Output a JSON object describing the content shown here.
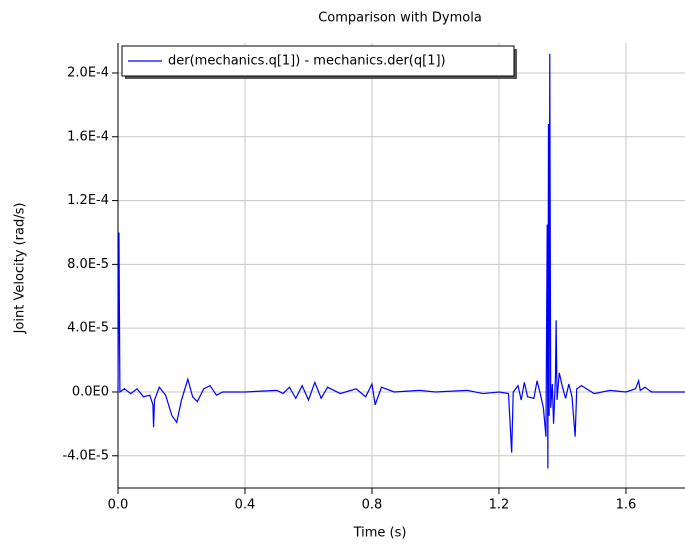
{
  "chart_data": {
    "type": "line",
    "title": "Comparison with Dymola",
    "xlabel": "Time (s)",
    "ylabel": "Joint Velocity  (rad/s)",
    "x": [
      0,
      0.003,
      0.006,
      0.02,
      0.04,
      0.06,
      0.08,
      0.1,
      0.11,
      0.112,
      0.115,
      0.13,
      0.15,
      0.17,
      0.185,
      0.2,
      0.22,
      0.235,
      0.25,
      0.27,
      0.29,
      0.31,
      0.33,
      0.4,
      0.5,
      0.52,
      0.54,
      0.56,
      0.58,
      0.6,
      0.62,
      0.64,
      0.66,
      0.7,
      0.75,
      0.78,
      0.8,
      0.81,
      0.83,
      0.87,
      0.95,
      1.0,
      1.1,
      1.15,
      1.2,
      1.23,
      1.24,
      1.245,
      1.26,
      1.27,
      1.28,
      1.29,
      1.31,
      1.32,
      1.33,
      1.34,
      1.348,
      1.352,
      1.354,
      1.356,
      1.358,
      1.36,
      1.363,
      1.368,
      1.372,
      1.378,
      1.38,
      1.383,
      1.39,
      1.4,
      1.41,
      1.42,
      1.43,
      1.44,
      1.445,
      1.46,
      1.5,
      1.55,
      1.6,
      1.63,
      1.64,
      1.645,
      1.66,
      1.68,
      1.786
    ],
    "series": [
      {
        "name": "der(mechanics.q[1]) - mechanics.der(q[1])",
        "color": "#0000ff",
        "values": [
          0,
          0.0001,
          0,
          2e-06,
          -1e-06,
          2e-06,
          -3e-06,
          -2e-06,
          -8e-06,
          -2.2e-05,
          -5e-06,
          3e-06,
          -2e-06,
          -1.5e-05,
          -1.9e-05,
          -5e-06,
          8e-06,
          -3e-06,
          -6e-06,
          2e-06,
          4e-06,
          -2e-06,
          0,
          0,
          1e-06,
          -1e-06,
          3e-06,
          -4e-06,
          4e-06,
          -5e-06,
          6e-06,
          -4e-06,
          3e-06,
          -1e-06,
          2e-06,
          -3e-06,
          5e-06,
          -8e-06,
          3e-06,
          0,
          1e-06,
          0,
          1e-06,
          -1e-06,
          0,
          -1e-06,
          -3.8e-05,
          0,
          4e-06,
          -5e-06,
          6e-06,
          -3e-06,
          -4e-06,
          7e-06,
          -1e-06,
          -1e-05,
          -2.8e-05,
          0.000105,
          -4.8e-05,
          0.000168,
          -1.5e-05,
          0.000212,
          -1e-05,
          5e-06,
          -2e-05,
          1e-05,
          4.5e-05,
          -5e-06,
          1.2e-05,
          3e-06,
          -4e-06,
          5e-06,
          -3e-06,
          -2.8e-05,
          2e-06,
          4e-06,
          -1e-06,
          1e-06,
          0,
          2e-06,
          7e-06,
          1e-06,
          3e-06,
          0,
          0
        ]
      }
    ],
    "xlim": [
      0,
      1.786
    ],
    "ylim": [
      -6.02e-05,
      0.0002188
    ],
    "xticks": [
      {
        "value": 0,
        "label": "0.0"
      },
      0.4,
      0.8,
      1.2,
      1.6
    ],
    "yticks": [
      {
        "value": -4e-05,
        "label": "-4.0E-5"
      },
      {
        "value": 0,
        "label": "0.0E0"
      },
      {
        "value": 4e-05,
        "label": "4.0E-5"
      },
      {
        "value": 8e-05,
        "label": "8.0E-5"
      },
      {
        "value": 0.00012,
        "label": "1.2E-4"
      },
      {
        "value": 0.00016,
        "label": "1.6E-4"
      },
      {
        "value": 0.0002,
        "label": "2.0E-4"
      }
    ],
    "grid": true,
    "legend": "upper left"
  }
}
